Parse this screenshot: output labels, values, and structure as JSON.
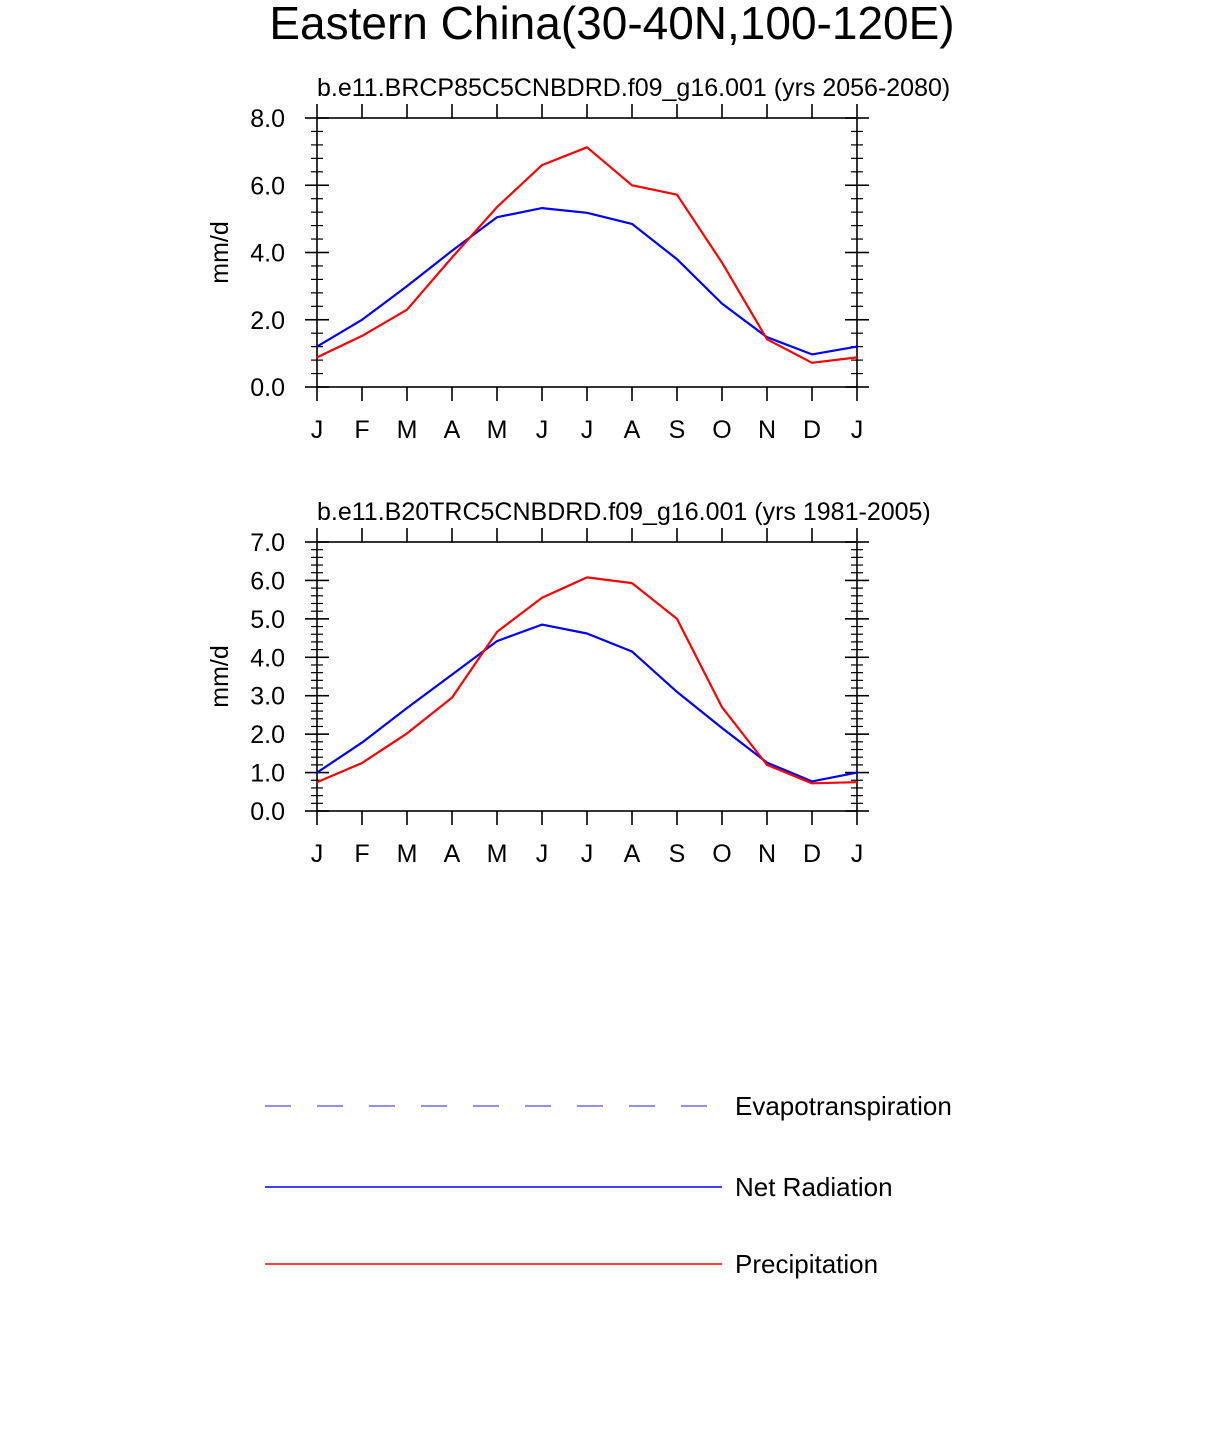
{
  "title": "Eastern China(30-40N,100-120E)",
  "colors": {
    "net_radiation": "#0000ff",
    "precipitation": "#ff0000",
    "evapotranspiration": "#6a6aff"
  },
  "chart_data": [
    {
      "type": "line",
      "title": "b.e11.BRCP85C5CNBDRD.f09_g16.001 (yrs 2056-2080)",
      "xlabel": "",
      "ylabel": "mm/d",
      "categories": [
        "J",
        "F",
        "M",
        "A",
        "M",
        "J",
        "J",
        "A",
        "S",
        "O",
        "N",
        "D",
        "J"
      ],
      "ylim": [
        0,
        8
      ],
      "yticks": [
        "0.0",
        "2.0",
        "4.0",
        "6.0",
        "8.0"
      ],
      "series": [
        {
          "name": "Net Radiation",
          "color": "#0000ff",
          "values": [
            1.2,
            2.0,
            3.0,
            4.05,
            5.05,
            5.32,
            5.18,
            4.85,
            3.8,
            2.48,
            1.48,
            0.97,
            1.2
          ]
        },
        {
          "name": "Precipitation",
          "color": "#ff0000",
          "values": [
            0.88,
            1.52,
            2.3,
            3.85,
            5.35,
            6.6,
            7.13,
            6.0,
            5.72,
            3.7,
            1.42,
            0.72,
            0.88
          ]
        }
      ]
    },
    {
      "type": "line",
      "title": "b.e11.B20TRC5CNBDRD.f09_g16.001 (yrs 1981-2005)",
      "xlabel": "",
      "ylabel": "mm/d",
      "categories": [
        "J",
        "F",
        "M",
        "A",
        "M",
        "J",
        "J",
        "A",
        "S",
        "O",
        "N",
        "D",
        "J"
      ],
      "ylim": [
        0,
        7
      ],
      "yticks": [
        "0.0",
        "1.0",
        "2.0",
        "3.0",
        "4.0",
        "5.0",
        "6.0",
        "7.0"
      ],
      "series": [
        {
          "name": "Net Radiation",
          "color": "#0000ff",
          "values": [
            1.0,
            1.78,
            2.68,
            3.55,
            4.42,
            4.85,
            4.62,
            4.15,
            3.1,
            2.16,
            1.26,
            0.77,
            1.0
          ]
        },
        {
          "name": "Precipitation",
          "color": "#ff0000",
          "values": [
            0.75,
            1.25,
            2.02,
            2.95,
            4.66,
            5.55,
            6.08,
            5.93,
            5.0,
            2.7,
            1.2,
            0.72,
            0.75
          ]
        }
      ]
    }
  ],
  "legend": [
    {
      "label": "Evapotranspiration",
      "style": "dashed",
      "color": "#6a6aff"
    },
    {
      "label": "Net Radiation",
      "style": "solid",
      "color": "#0000ff"
    },
    {
      "label": "Precipitation",
      "style": "solid",
      "color": "#ff0000"
    }
  ]
}
